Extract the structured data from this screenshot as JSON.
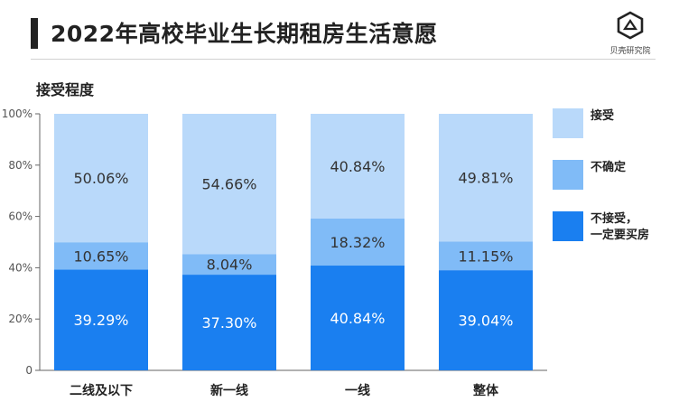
{
  "header": {
    "title": "2022年高校毕业生长期租房生活意愿",
    "brand_label": "贝壳研究院"
  },
  "chart_data": {
    "type": "bar",
    "stacked": true,
    "title": "2022年高校毕业生长期租房生活意愿",
    "subtitle": "接受程度",
    "categories": [
      "二线及以下",
      "新一线",
      "一线",
      "整体"
    ],
    "series": [
      {
        "name": "不接受，\n一定要买房",
        "values": [
          39.29,
          37.3,
          40.84,
          39.04
        ],
        "labels": [
          "39.29%",
          "37.30%",
          "40.84%",
          "39.04%"
        ],
        "color": "#1a7ff0"
      },
      {
        "name": "不确定",
        "values": [
          10.65,
          8.04,
          18.32,
          11.15
        ],
        "labels": [
          "10.65%",
          "8.04%",
          "18.32%",
          "11.15%"
        ],
        "color": "#80bbf7"
      },
      {
        "name": "接受",
        "values": [
          50.06,
          54.66,
          40.84,
          49.81
        ],
        "labels": [
          "50.06%",
          "54.66%",
          "40.84%",
          "49.81%"
        ],
        "color": "#b9d9fa"
      }
    ],
    "ylim": [
      0,
      100
    ],
    "yticks": [
      "0",
      "20%",
      "40%",
      "60%",
      "80%",
      "100%"
    ],
    "ytick_values": [
      0,
      20,
      40,
      60,
      80,
      100
    ],
    "grid": false,
    "legend_position": "right"
  },
  "legend": [
    {
      "label": "接受",
      "color": "#b9d9fa"
    },
    {
      "label": "不确定",
      "color": "#80bbf7"
    },
    {
      "label": "不接受，\n一定要买房",
      "color": "#1a7ff0"
    }
  ]
}
